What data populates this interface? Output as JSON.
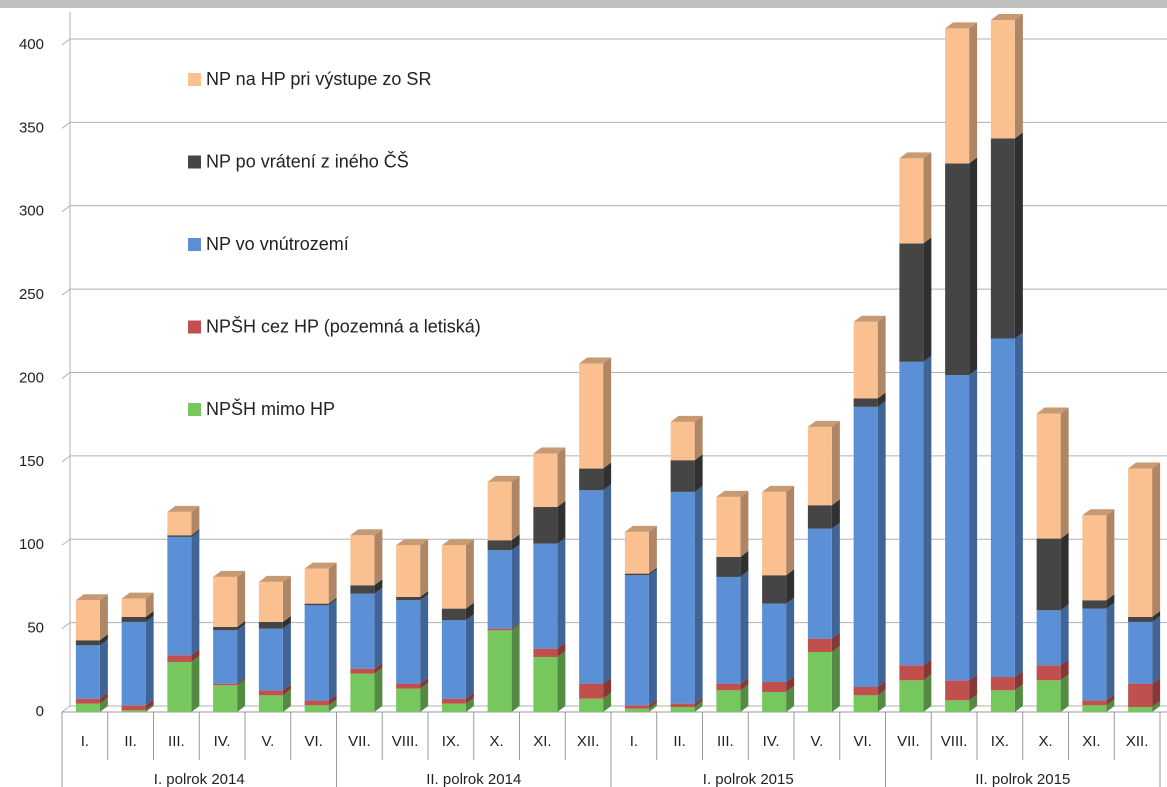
{
  "chart_data": {
    "type": "bar3d_stacked",
    "categories": [
      "I.",
      "II.",
      "III.",
      "IV.",
      "V.",
      "VI.",
      "VII.",
      "VIII.",
      "IX.",
      "X.",
      "XI.",
      "XII.",
      "I.",
      "II.",
      "III.",
      "IV.",
      "V.",
      "VI.",
      "VII.",
      "VIII.",
      "IX.",
      "X.",
      "XI.",
      "XII."
    ],
    "groups": [
      "I. polrok 2014",
      "II. polrok 2014",
      "I. polrok 2015",
      "II. polrok 2015"
    ],
    "series": [
      {
        "name": "NPŠH mimo HP",
        "color": "#77c75f",
        "values": [
          5,
          1,
          30,
          16,
          10,
          4,
          23,
          14,
          5,
          49,
          33,
          8,
          2,
          3,
          13,
          12,
          36,
          10,
          19,
          7,
          13,
          19,
          4,
          3
        ]
      },
      {
        "name": "NPŠH cez HP (pozemná a letiská)",
        "color": "#c0504d",
        "values": [
          3,
          3,
          4,
          1,
          3,
          3,
          3,
          3,
          3,
          1,
          5,
          9,
          2,
          2,
          4,
          6,
          8,
          5,
          9,
          12,
          8,
          9,
          3,
          14
        ]
      },
      {
        "name": "NP vo vnútrozemí",
        "color": "#5b8fd6",
        "values": [
          32,
          50,
          71,
          32,
          37,
          57,
          45,
          50,
          47,
          47,
          63,
          116,
          78,
          127,
          64,
          47,
          66,
          168,
          182,
          183,
          203,
          33,
          55,
          37
        ]
      },
      {
        "name": "NP po vrátení z iného ČŠ",
        "color": "#454545",
        "values": [
          3,
          3,
          1,
          2,
          4,
          1,
          5,
          2,
          7,
          6,
          22,
          13,
          1,
          19,
          12,
          17,
          14,
          5,
          71,
          127,
          120,
          43,
          5,
          3
        ]
      },
      {
        "name": "NP na HP pri výstupe zo SR",
        "color": "#fac090",
        "values": [
          24,
          11,
          14,
          30,
          24,
          21,
          30,
          31,
          38,
          35,
          32,
          63,
          25,
          23,
          36,
          50,
          47,
          46,
          51,
          81,
          71,
          75,
          51,
          89
        ]
      }
    ],
    "ylim": [
      0,
      400
    ],
    "yticks": [
      0,
      50,
      100,
      150,
      200,
      250,
      300,
      350,
      400
    ],
    "grid": true
  }
}
